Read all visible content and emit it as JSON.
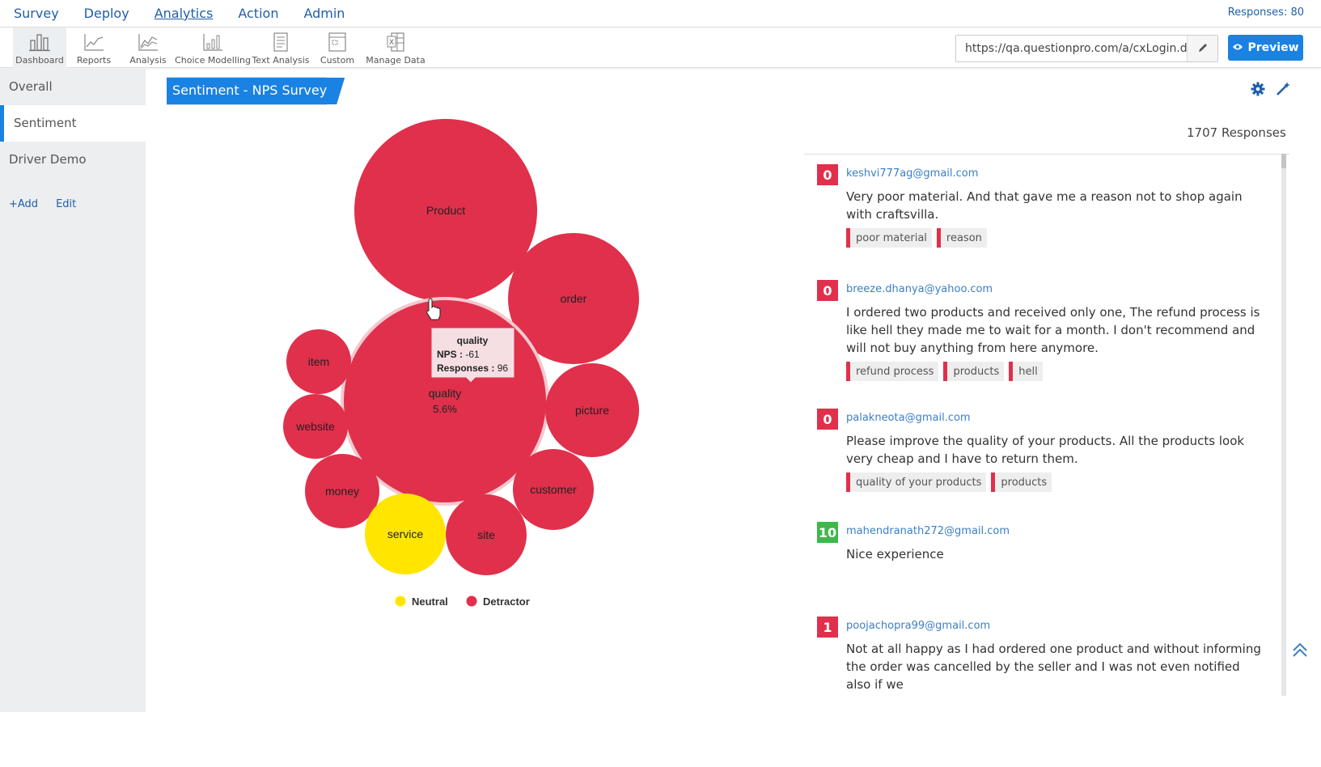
{
  "topnav": {
    "items": [
      {
        "label": "Survey"
      },
      {
        "label": "Deploy"
      },
      {
        "label": "Analytics"
      },
      {
        "label": "Action"
      },
      {
        "label": "Admin"
      }
    ],
    "responses": "Responses: 80"
  },
  "toolbar": {
    "tools": [
      {
        "label": "Dashboard",
        "icon": "bar-chart-icon"
      },
      {
        "label": "Reports",
        "icon": "line-chart-icon"
      },
      {
        "label": "Analysis",
        "icon": "area-chart-icon"
      },
      {
        "label": "Choice Modelling",
        "icon": "choice-model-icon"
      },
      {
        "label": "Text Analysis",
        "icon": "text-analysis-icon"
      },
      {
        "label": "Custom",
        "icon": "custom-icon"
      },
      {
        "label": "Manage Data",
        "icon": "excel-icon"
      }
    ],
    "url": "https://qa.questionpro.com/a/cxLogin.do?id",
    "preview_label": "Preview"
  },
  "sidebar": {
    "items": [
      {
        "label": "Overall"
      },
      {
        "label": "Sentiment"
      },
      {
        "label": "Driver Demo"
      }
    ],
    "add_label": "+Add",
    "edit_label": "Edit"
  },
  "main": {
    "title": "Sentiment - NPS Survey",
    "response_count": "1707 Responses"
  },
  "colors": {
    "detractor": "#e0304b",
    "neutral": "#ffe500",
    "promoter": "#3cb94a",
    "accent": "#1a82e2"
  },
  "chart_data": {
    "type": "bubble",
    "bubbles": [
      {
        "label": "Product",
        "category": "Detractor"
      },
      {
        "label": "order",
        "category": "Detractor"
      },
      {
        "label": "quality",
        "sublabel": "5.6%",
        "category": "Detractor"
      },
      {
        "label": "item",
        "category": "Detractor"
      },
      {
        "label": "website",
        "category": "Detractor"
      },
      {
        "label": "picture",
        "category": "Detractor"
      },
      {
        "label": "money",
        "category": "Detractor"
      },
      {
        "label": "customer",
        "category": "Detractor"
      },
      {
        "label": "service",
        "category": "Neutral"
      },
      {
        "label": "site",
        "category": "Detractor"
      }
    ],
    "tooltip": {
      "title": "quality",
      "nps_label": "NPS :",
      "nps_value": "-61",
      "responses_label": "Responses :",
      "responses_value": "96"
    },
    "legend": [
      {
        "name": "Neutral"
      },
      {
        "name": "Detractor"
      }
    ]
  },
  "responses": [
    {
      "score": "0",
      "type": "detractor",
      "email": "keshvi777ag@gmail.com",
      "comment": "Very poor material. And that gave me a reason not to shop again with craftsvilla.",
      "tags": [
        "poor material",
        "reason"
      ]
    },
    {
      "score": "0",
      "type": "detractor",
      "email": "breeze.dhanya@yahoo.com",
      "comment": "I ordered two products and received only one, The refund process is like hell they made me to wait for a month. I don't recommend and will not buy anything from here anymore.",
      "tags": [
        "refund process",
        "products",
        "hell"
      ]
    },
    {
      "score": "0",
      "type": "detractor",
      "email": "palakneota@gmail.com",
      "comment": "Please improve the quality of your products. All the products look very cheap and I have to return them.",
      "tags": [
        "quality of your products",
        "products"
      ]
    },
    {
      "score": "10",
      "type": "promoter",
      "email": "mahendranath272@gmail.com",
      "comment": "Nice experience",
      "tags": []
    },
    {
      "score": "1",
      "type": "detractor",
      "email": "poojachopra99@gmail.com",
      "comment": "Not at all happy as I had ordered one product and without informing the order was cancelled by the seller and I was not even notified also if we",
      "tags": []
    }
  ]
}
